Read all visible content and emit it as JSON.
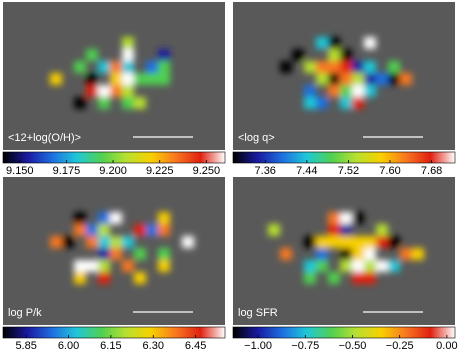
{
  "chart_data": [
    {
      "type": "map",
      "label": "<12+log(O/H)>",
      "colors": [
        "#000000",
        "#1a1aa0",
        "#1f6fe0",
        "#1fc8d8",
        "#50d050",
        "#b8e030",
        "#f8d000",
        "#f87820",
        "#e02010",
        "#ffffff"
      ],
      "clim": [
        9.141,
        9.26
      ],
      "cticks": [
        {
          "value": 9.15,
          "label": "9.150"
        },
        9.175,
        {
          "value": 9.2,
          "label": "9.200"
        },
        9.225,
        {
          "value": 9.25,
          "label": "9.250"
        }
      ]
    },
    {
      "type": "map",
      "label": "<log q>",
      "colors": [
        "#000000",
        "#1a1aa0",
        "#1f6fe0",
        "#1fc8d8",
        "#50d050",
        "#b8e030",
        "#f8d000",
        "#f87820",
        "#e02010",
        "#ffffff"
      ],
      "clim": [
        7.298,
        7.725
      ],
      "cticks": [
        7.36,
        7.44,
        7.52,
        {
          "value": 7.6,
          "label": "7.60"
        },
        7.68
      ]
    },
    {
      "type": "map",
      "label": "log P/k",
      "colors": [
        "#000000",
        "#1a1aa0",
        "#1f6fe0",
        "#1fc8d8",
        "#50d050",
        "#b8e030",
        "#f8d000",
        "#f87820",
        "#e02010",
        "#ffffff"
      ],
      "clim": [
        5.768,
        6.554
      ],
      "cticks": [
        5.85,
        {
          "value": 6,
          "label": "6.00"
        },
        6.15,
        {
          "value": 6.3,
          "label": "6.30"
        },
        6.45
      ]
    },
    {
      "type": "map",
      "label": "log SFR",
      "colors": [
        "#000000",
        "#1a1aa0",
        "#1f6fe0",
        "#1fc8d8",
        "#50d050",
        "#b8e030",
        "#f8d000",
        "#f87820",
        "#e02010",
        "#ffffff"
      ],
      "clim": [
        -1.133,
        0.043
      ],
      "cticks": [
        {
          "value": -1,
          "label": "−1.00"
        },
        {
          "value": -0.75,
          "label": "−0.75"
        },
        {
          "value": -0.5,
          "label": "−0.50"
        },
        {
          "value": -0.25,
          "label": "−0.25"
        },
        {
          "value": 0,
          "label": "0.00"
        }
      ]
    }
  ]
}
